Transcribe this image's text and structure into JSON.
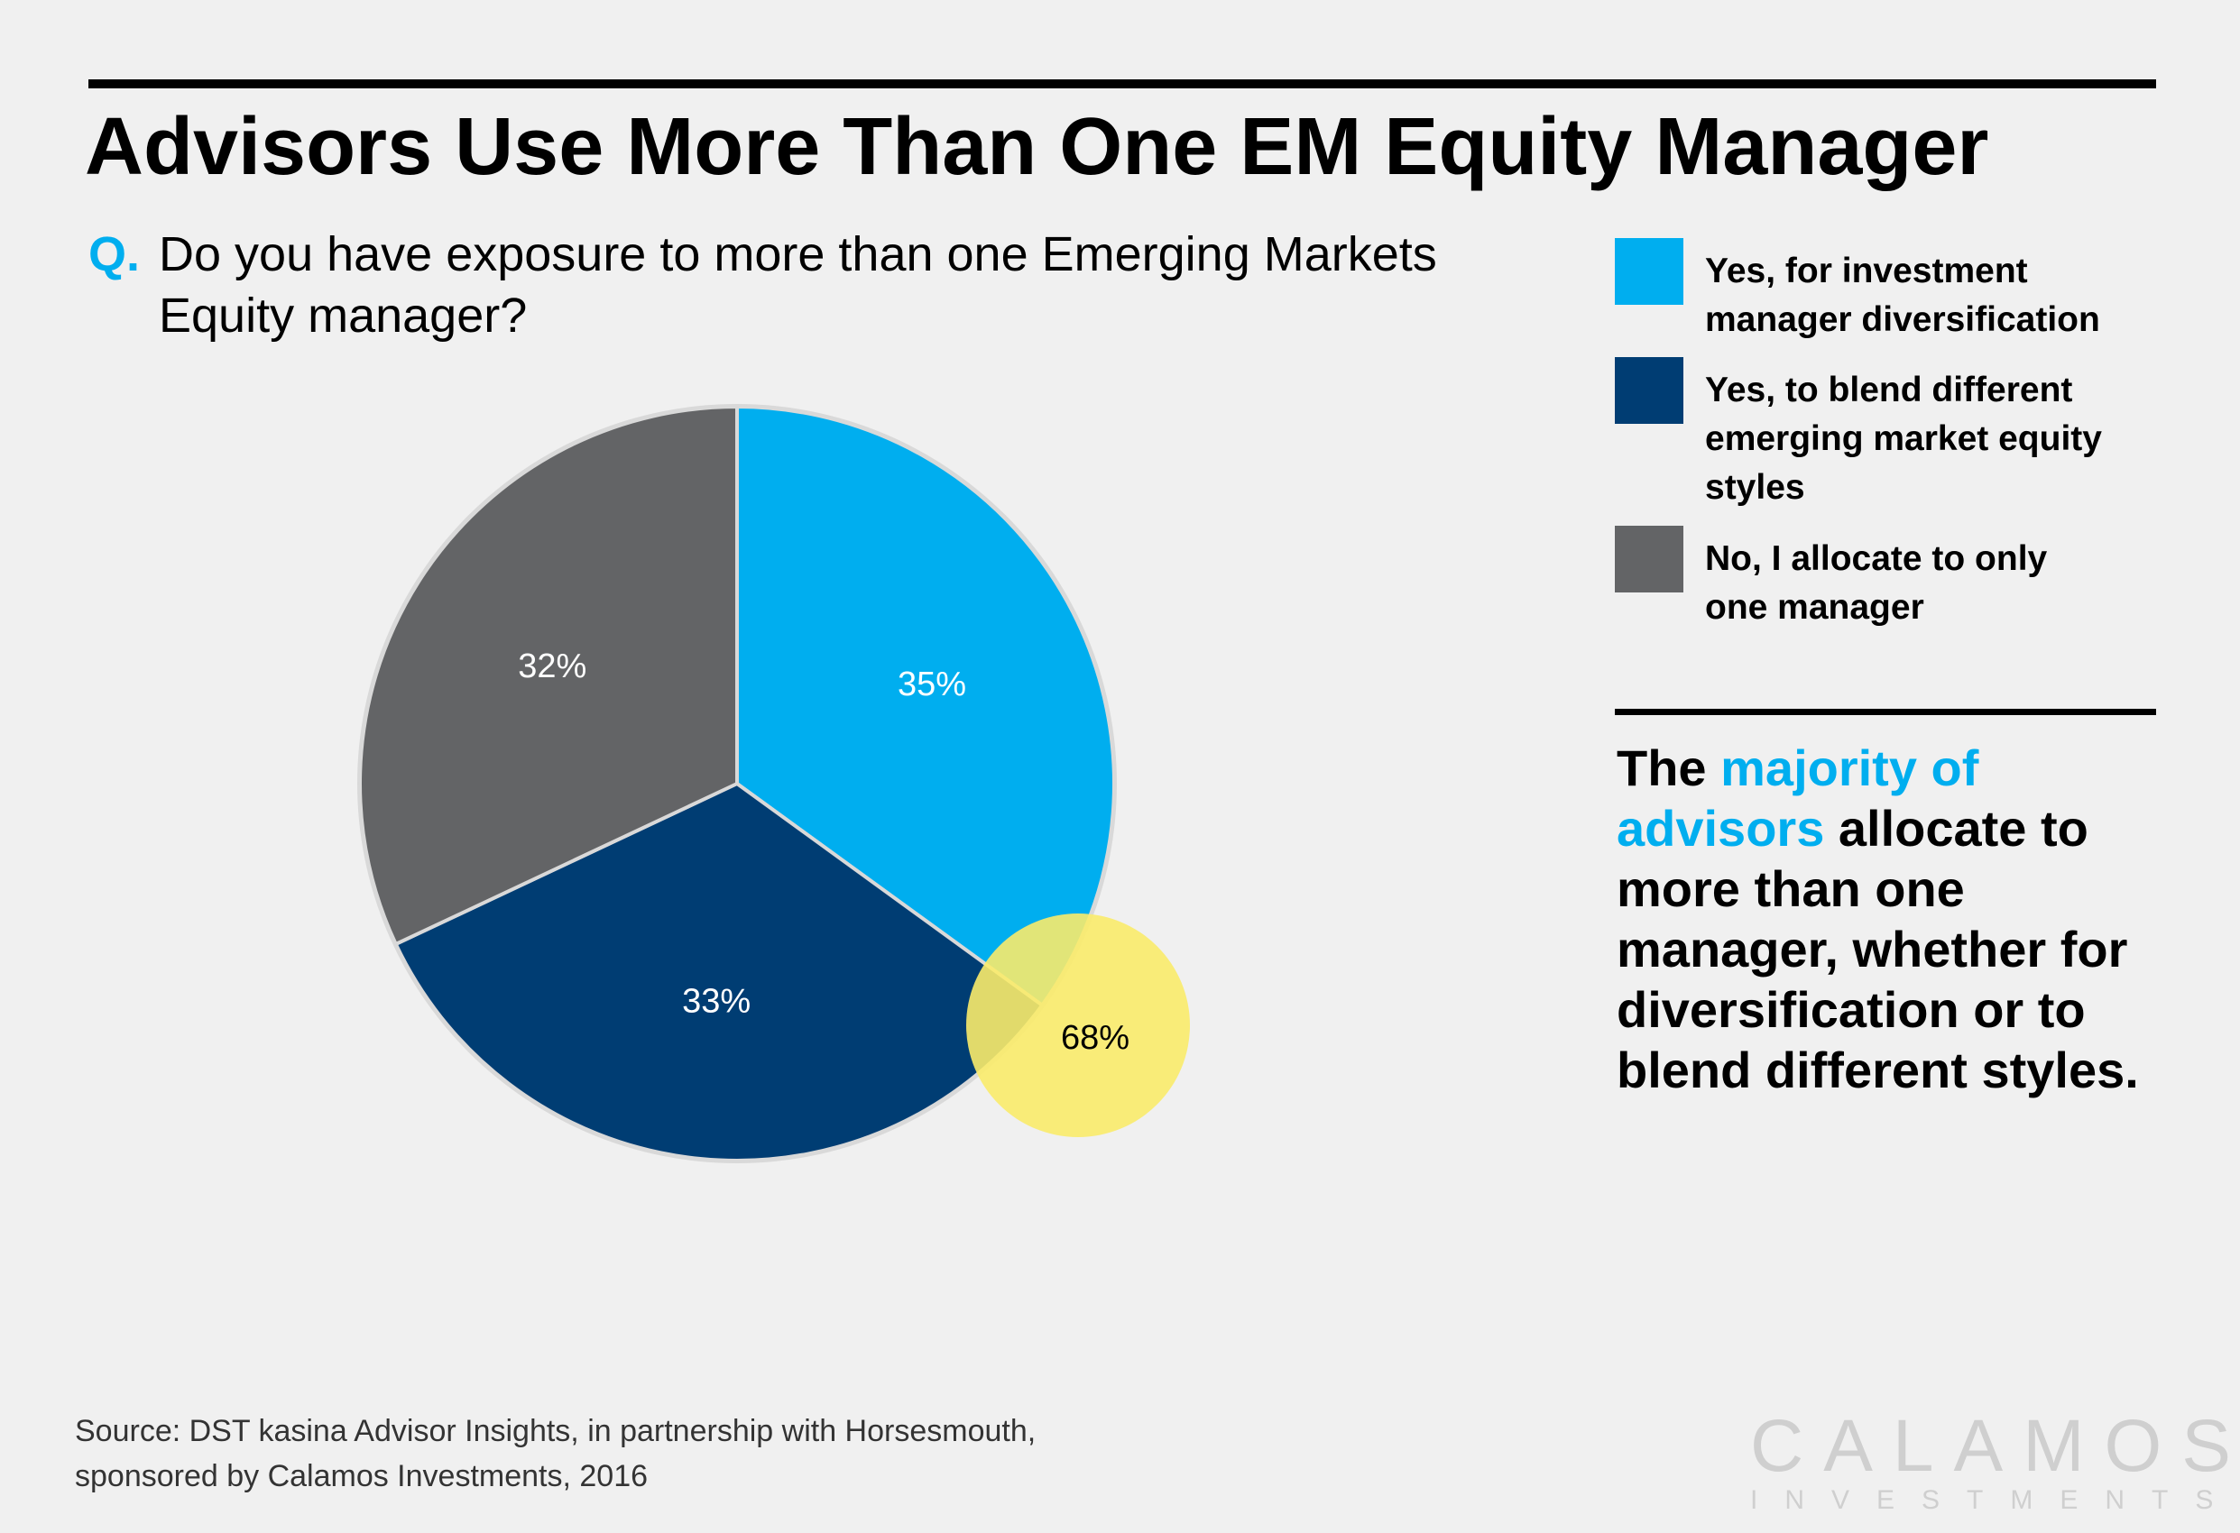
{
  "title": "Advisors Use More Than One EM Equity Manager",
  "question": {
    "prefix": "Q.",
    "text": "Do you have exposure to more than one Emerging Markets Equity manager?"
  },
  "legend": [
    {
      "label": "Yes, for investment manager diversification",
      "color": "#00aeef"
    },
    {
      "label": "Yes, to blend different emerging market equity styles",
      "color": "#003d73"
    },
    {
      "label": "No, I allocate to only one manager",
      "color": "#636466"
    }
  ],
  "callout": {
    "part1": "The ",
    "highlight": "majority of advisors",
    "part2": " allocate to more than one manager, whether for diversification or to blend different styles."
  },
  "source": {
    "line1": "Source: DST kasina Advisor Insights, in partnership with Horsesmouth,",
    "line2": "sponsored by Calamos Investments, 2016"
  },
  "logo": {
    "line1": "CALAMOS",
    "line2": "INVESTMENTS"
  },
  "chart_data": {
    "type": "pie",
    "categories": [
      "Yes, for investment manager diversification",
      "Yes, to blend different emerging market equity styles",
      "No, I allocate to only one manager"
    ],
    "values": [
      35,
      33,
      32
    ],
    "labels": [
      "35%",
      "33%",
      "32%"
    ],
    "colors": [
      "#00aeef",
      "#003d73",
      "#636466"
    ],
    "annotation": {
      "label": "68%",
      "color": "#f9eb6a"
    },
    "legend_position": "right"
  }
}
